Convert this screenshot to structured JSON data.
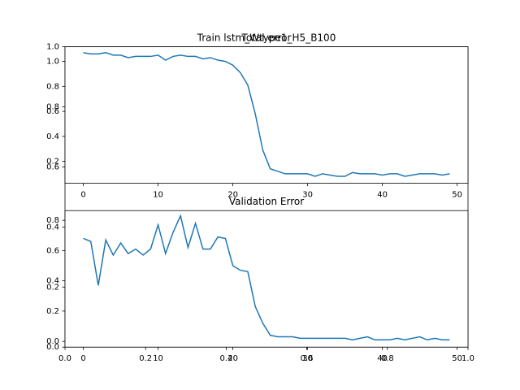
{
  "chart_data": [
    {
      "type": "line",
      "title": "Train lstm_Wtype1_H5_B100",
      "xlim": [
        0,
        1
      ],
      "ylim": [
        0,
        1
      ],
      "xticks": [
        {
          "value": 0,
          "label": "0.0"
        },
        0.2,
        0.4,
        0.6,
        0.8,
        {
          "value": 1,
          "label": "1.0"
        }
      ],
      "yticks": [
        {
          "value": 0,
          "label": "0.0"
        },
        0.2,
        0.4,
        0.6,
        0.8,
        {
          "value": 1,
          "label": "1.0"
        }
      ]
    },
    {
      "type": "line",
      "title": "Total error",
      "x": [
        0,
        1,
        2,
        3,
        4,
        5,
        6,
        7,
        8,
        9,
        10,
        11,
        12,
        13,
        14,
        15,
        16,
        17,
        18,
        19,
        20,
        21,
        22,
        23,
        24,
        25,
        26,
        27,
        28,
        29,
        30,
        31,
        32,
        33,
        34,
        35,
        36,
        37,
        38,
        39,
        40,
        41,
        42,
        43,
        44,
        45,
        46,
        47,
        48,
        49
      ],
      "series": [
        {
          "name": "Total error",
          "color": "#1f77b4",
          "values": [
            1.07,
            1.06,
            1.06,
            1.07,
            1.05,
            1.05,
            1.03,
            1.04,
            1.04,
            1.04,
            1.05,
            1.01,
            1.04,
            1.05,
            1.04,
            1.04,
            1.02,
            1.03,
            1.01,
            1.0,
            0.97,
            0.91,
            0.81,
            0.58,
            0.29,
            0.14,
            0.12,
            0.1,
            0.1,
            0.1,
            0.1,
            0.08,
            0.1,
            0.09,
            0.08,
            0.08,
            0.11,
            0.1,
            0.1,
            0.1,
            0.09,
            0.1,
            0.1,
            0.08,
            0.09,
            0.1,
            0.1,
            0.1,
            0.09,
            0.1
          ]
        }
      ],
      "xlim": [
        -2.45,
        51.45
      ],
      "ylim": [
        0.024,
        1.117
      ],
      "xticks": [
        0,
        10,
        20,
        30,
        40,
        50
      ],
      "yticks": [
        0.2,
        0.4,
        0.6,
        0.8,
        {
          "value": 1,
          "label": "1.0"
        }
      ]
    },
    {
      "type": "line",
      "title": "Validation Error",
      "x": [
        0,
        1,
        2,
        3,
        4,
        5,
        6,
        7,
        8,
        9,
        10,
        11,
        12,
        13,
        14,
        15,
        16,
        17,
        18,
        19,
        20,
        21,
        22,
        23,
        24,
        25,
        26,
        27,
        28,
        29,
        30,
        31,
        32,
        33,
        34,
        35,
        36,
        37,
        38,
        39,
        40,
        41,
        42,
        43,
        44,
        45,
        46,
        47,
        48,
        49
      ],
      "series": [
        {
          "name": "Validation Error",
          "color": "#1f77b4",
          "values": [
            0.68,
            0.66,
            0.37,
            0.67,
            0.57,
            0.65,
            0.58,
            0.61,
            0.57,
            0.61,
            0.77,
            0.58,
            0.72,
            0.83,
            0.62,
            0.78,
            0.61,
            0.61,
            0.69,
            0.68,
            0.5,
            0.47,
            0.46,
            0.23,
            0.12,
            0.04,
            0.03,
            0.03,
            0.03,
            0.02,
            0.02,
            0.02,
            0.02,
            0.02,
            0.02,
            0.02,
            0.01,
            0.02,
            0.03,
            0.01,
            0.01,
            0.01,
            0.02,
            0.01,
            0.02,
            0.03,
            0.01,
            0.02,
            0.01,
            0.01
          ]
        }
      ],
      "xlim": [
        -2.45,
        51.45
      ],
      "ylim": [
        -0.038,
        0.864
      ],
      "xticks": [
        0,
        10,
        20,
        30,
        40,
        50
      ],
      "yticks": [
        {
          "value": 0,
          "label": "0.0"
        },
        0.2,
        0.4,
        0.6,
        0.8
      ]
    }
  ]
}
